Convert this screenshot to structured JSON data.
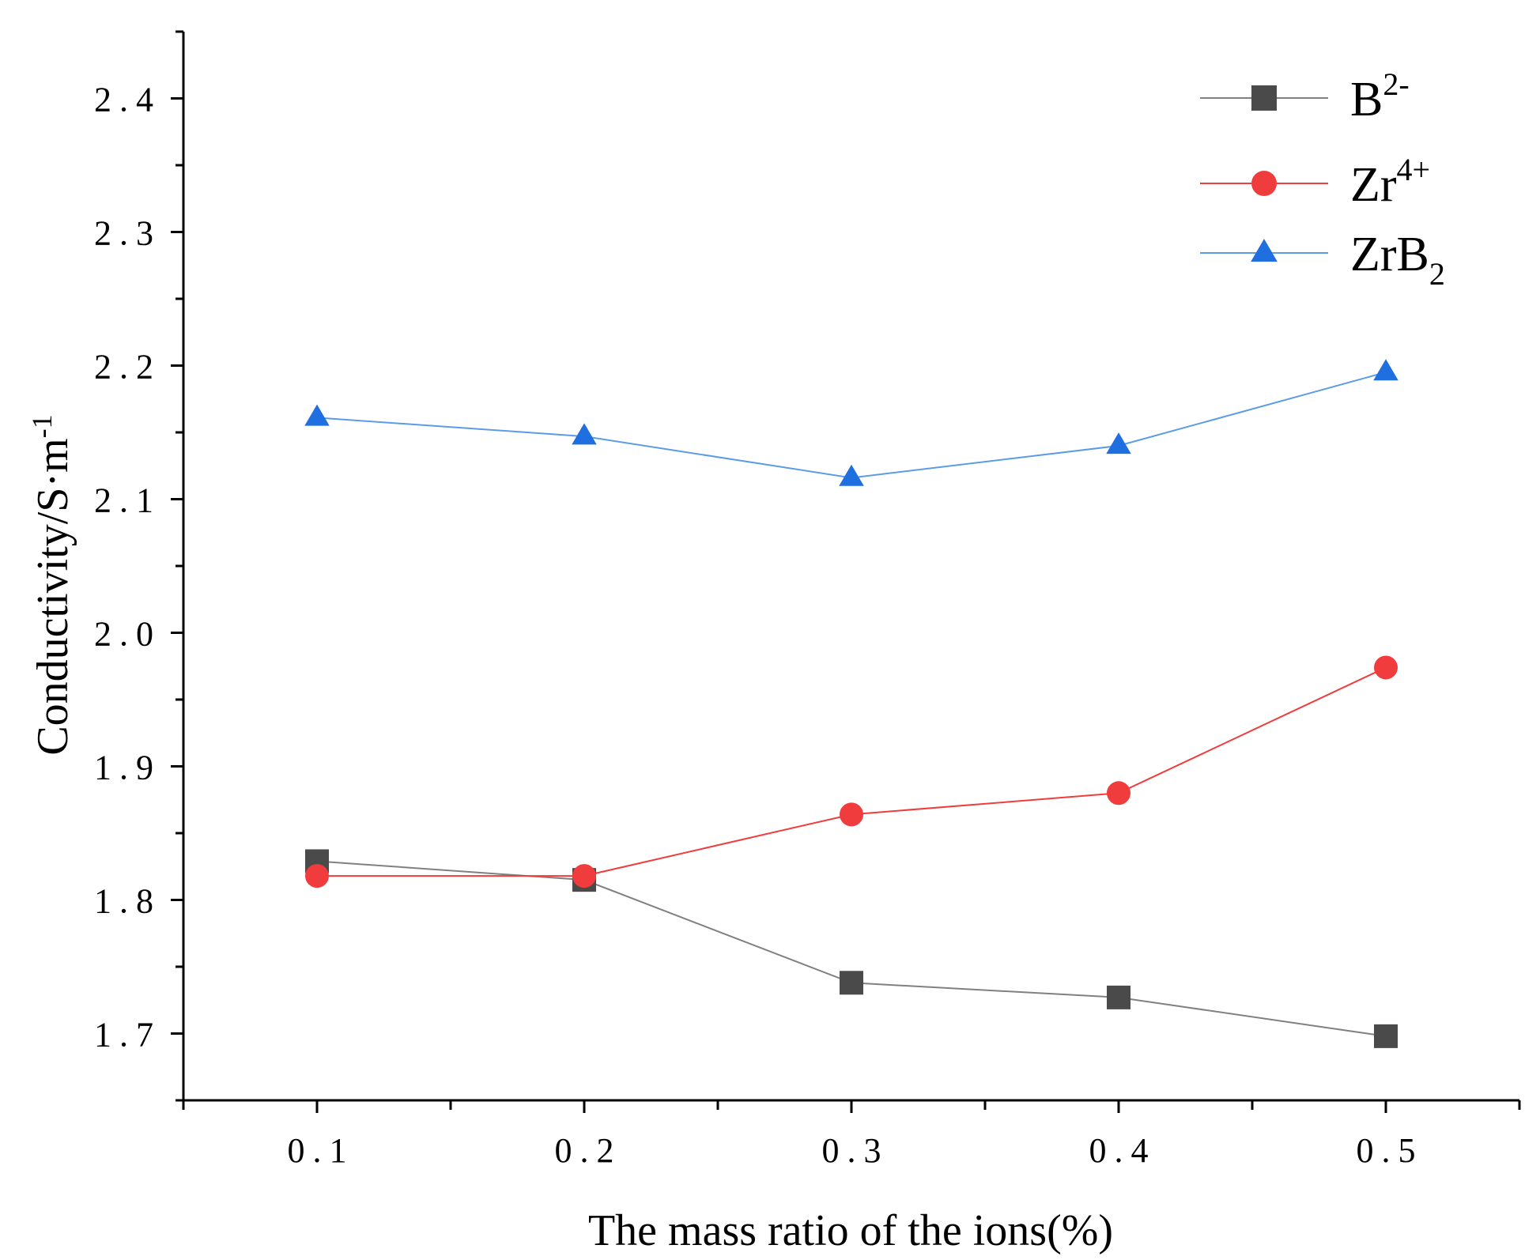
{
  "chart_data": {
    "type": "line",
    "title": "",
    "xlabel": "The mass ratio of the ions(%)",
    "ylabel": "Conductivity/S·m",
    "ylabel_sup": "-1",
    "x": [
      0.1,
      0.2,
      0.3,
      0.4,
      0.5
    ],
    "x_tick_labels": [
      "0.1",
      "0.2",
      "0.3",
      "0.4",
      "0.5"
    ],
    "y_ticks": [
      1.7,
      1.8,
      1.9,
      2.0,
      2.1,
      2.2,
      2.3,
      2.4
    ],
    "y_tick_labels": [
      "1.7",
      "1.8",
      "1.9",
      "2.0",
      "2.1",
      "2.2",
      "2.3",
      "2.4"
    ],
    "xlim": [
      0.05,
      0.55
    ],
    "ylim": [
      1.65,
      2.45
    ],
    "grid": false,
    "legend_position": "top-right",
    "series": [
      {
        "name": "B",
        "name_sup": "2-",
        "name_sub": "",
        "marker": "square",
        "color": "#4a4a4a",
        "line_color": "#808080",
        "values": [
          1.829,
          1.815,
          1.738,
          1.727,
          1.698
        ]
      },
      {
        "name": "Zr",
        "name_sup": "4+",
        "name_sub": "",
        "marker": "circle",
        "color": "#f03c3c",
        "line_color": "#f03c3c",
        "values": [
          1.818,
          1.818,
          1.864,
          1.88,
          1.974
        ]
      },
      {
        "name": "ZrB",
        "name_sup": "",
        "name_sub": "2",
        "marker": "triangle",
        "color": "#1f6fe0",
        "line_color": "#5b9be8",
        "values": [
          2.161,
          2.147,
          2.116,
          2.14,
          2.195
        ]
      }
    ]
  }
}
